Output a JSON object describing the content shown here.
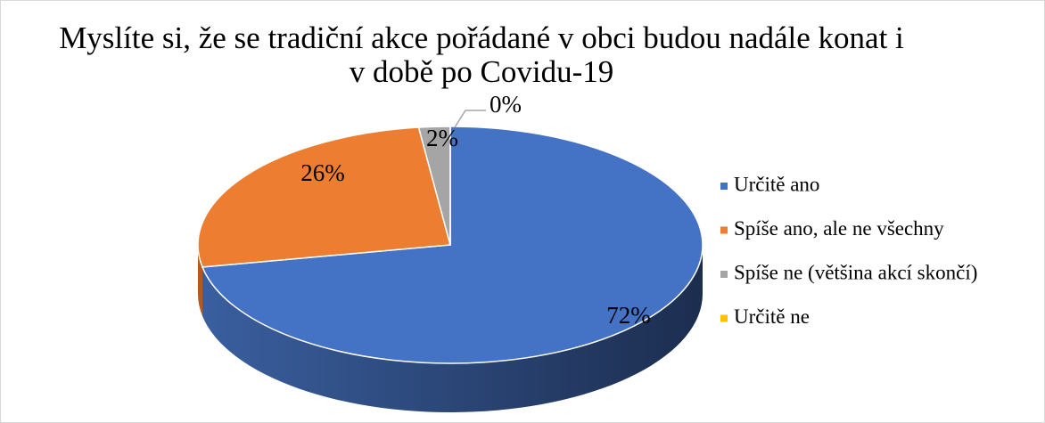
{
  "chart_data": {
    "type": "pie3d",
    "title": "Myslíte si, že se tradiční akce pořádané v obci budou nadále konat i v době po Covidu-19",
    "categories": [
      "Určitě ano",
      "Spíše ano, ale ne všechny",
      "Spíše ne (většina akcí skončí)",
      "Určitě ne"
    ],
    "values": [
      72,
      26,
      2,
      0
    ],
    "value_labels": [
      "72%",
      "26%",
      "2%",
      "0%"
    ],
    "colors": [
      "#4472c4",
      "#ed7d31",
      "#a5a5a5",
      "#ffc000"
    ],
    "legend": "right"
  }
}
